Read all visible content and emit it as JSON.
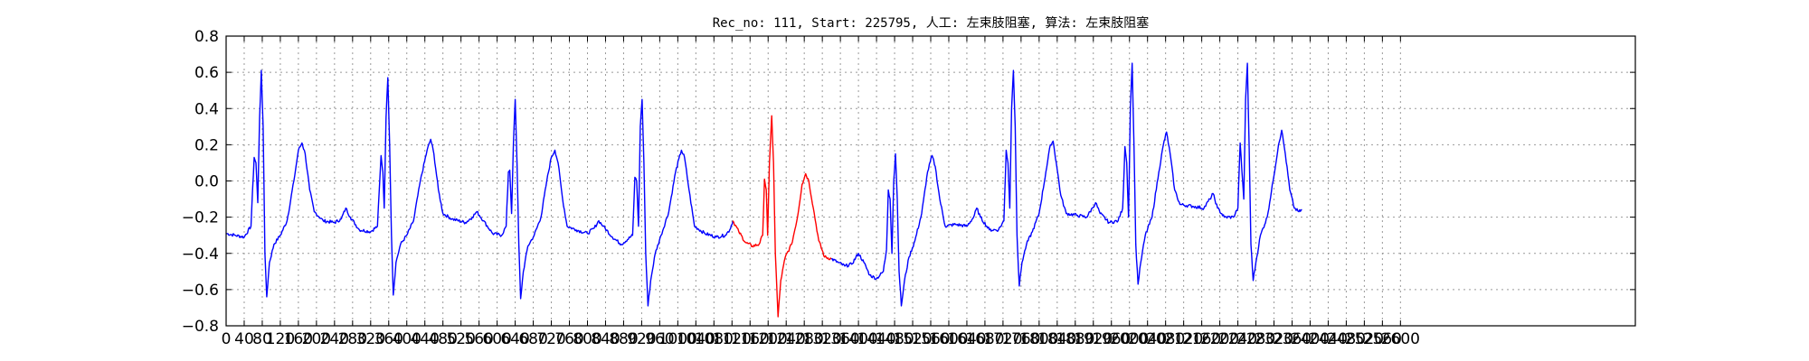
{
  "chart_data": {
    "type": "line",
    "title": "Rec_no: 111, Start: 225795, 人工: 左束肢阻塞, 算法: 左束肢阻塞",
    "xlabel": "",
    "ylabel": "",
    "xlim": [
      0,
      3120
    ],
    "ylim": [
      -0.8,
      0.8
    ],
    "grid": true,
    "x_ticks": [
      0,
      40,
      80,
      120,
      160,
      200,
      240,
      280,
      320,
      360,
      400,
      440,
      480,
      520,
      560,
      600,
      640,
      680,
      720,
      760,
      800,
      840,
      880,
      920,
      960,
      1000,
      1040,
      1080,
      1120,
      1160,
      1200,
      1240,
      1280,
      1320,
      1360,
      1400,
      1440,
      1480,
      1520,
      1560,
      1600,
      1640,
      1680,
      1720,
      1760,
      1800,
      1840,
      1880,
      1920,
      1960,
      2000,
      2040,
      2080,
      2120,
      2160,
      2200,
      2240,
      2280,
      2320,
      2360,
      2400,
      2440,
      2480,
      2520,
      2560,
      2600
    ],
    "x_tick_labels": [
      "0",
      "40",
      "80",
      "120",
      "160",
      "200",
      "240",
      "280",
      "320",
      "360",
      "400",
      "440",
      "480",
      "520",
      "560",
      "600",
      "640",
      "680",
      "720",
      "760",
      "800",
      "840",
      "880",
      "920",
      "960",
      "1000",
      "1040",
      "1080",
      "1120",
      "1160",
      "1200",
      "1240",
      "1280",
      "1320",
      "1360",
      "1400",
      "1440",
      "1480",
      "1520",
      "1560",
      "1600",
      "1640",
      "1680",
      "1720",
      "1760",
      "1800",
      "1840",
      "1880",
      "1920",
      "1960",
      "2000",
      "2040",
      "2080",
      "2120",
      "2160",
      "2200",
      "2240",
      "2280",
      "2320",
      "2360",
      "2400",
      "2440",
      "2480",
      "2520",
      "2560",
      "2600"
    ],
    "y_ticks": [
      -0.8,
      -0.6,
      -0.4,
      -0.2,
      0.0,
      0.2,
      0.4,
      0.6,
      0.8
    ],
    "y_tick_labels": [
      "−0.8",
      "−0.6",
      "−0.4",
      "−0.2",
      "0.0",
      "0.2",
      "0.4",
      "0.6",
      "0.8"
    ],
    "series": [
      {
        "color": "#0000ff",
        "points": [
          [
            0,
            -0.29
          ],
          [
            20,
            -0.3
          ],
          [
            40,
            -0.31
          ],
          [
            55,
            -0.25
          ],
          [
            62,
            0.13
          ],
          [
            66,
            0.1
          ],
          [
            70,
            -0.12
          ],
          [
            74,
            0.35
          ],
          [
            78,
            0.61
          ],
          [
            82,
            0.3
          ],
          [
            86,
            -0.4
          ],
          [
            90,
            -0.64
          ],
          [
            96,
            -0.45
          ],
          [
            106,
            -0.35
          ],
          [
            120,
            -0.3
          ],
          [
            135,
            -0.22
          ],
          [
            150,
            0.0
          ],
          [
            160,
            0.17
          ],
          [
            168,
            0.21
          ],
          [
            175,
            0.15
          ],
          [
            185,
            -0.05
          ],
          [
            195,
            -0.17
          ],
          [
            215,
            -0.22
          ],
          [
            240,
            -0.23
          ],
          [
            255,
            -0.21
          ],
          [
            265,
            -0.15
          ],
          [
            275,
            -0.2
          ],
          [
            295,
            -0.27
          ],
          [
            320,
            -0.28
          ],
          [
            335,
            -0.25
          ],
          [
            343,
            0.14
          ],
          [
            347,
            0.05
          ],
          [
            350,
            -0.15
          ],
          [
            354,
            0.35
          ],
          [
            358,
            0.57
          ],
          [
            362,
            0.2
          ],
          [
            366,
            -0.3
          ],
          [
            370,
            -0.63
          ],
          [
            376,
            -0.45
          ],
          [
            386,
            -0.35
          ],
          [
            400,
            -0.3
          ],
          [
            415,
            -0.22
          ],
          [
            430,
            0.0
          ],
          [
            445,
            0.17
          ],
          [
            453,
            0.23
          ],
          [
            460,
            0.15
          ],
          [
            470,
            -0.05
          ],
          [
            480,
            -0.18
          ],
          [
            500,
            -0.21
          ],
          [
            530,
            -0.23
          ],
          [
            545,
            -0.2
          ],
          [
            555,
            -0.17
          ],
          [
            570,
            -0.22
          ],
          [
            590,
            -0.29
          ],
          [
            610,
            -0.3
          ],
          [
            620,
            -0.25
          ],
          [
            625,
            0.05
          ],
          [
            628,
            0.06
          ],
          [
            632,
            -0.18
          ],
          [
            636,
            0.2
          ],
          [
            640,
            0.45
          ],
          [
            644,
            0.1
          ],
          [
            648,
            -0.35
          ],
          [
            652,
            -0.65
          ],
          [
            658,
            -0.5
          ],
          [
            668,
            -0.36
          ],
          [
            682,
            -0.3
          ],
          [
            697,
            -0.2
          ],
          [
            710,
            0.0
          ],
          [
            720,
            0.13
          ],
          [
            728,
            0.17
          ],
          [
            735,
            0.1
          ],
          [
            745,
            -0.1
          ],
          [
            755,
            -0.25
          ],
          [
            775,
            -0.27
          ],
          [
            800,
            -0.29
          ],
          [
            815,
            -0.26
          ],
          [
            825,
            -0.22
          ],
          [
            835,
            -0.25
          ],
          [
            855,
            -0.31
          ],
          [
            875,
            -0.35
          ],
          [
            900,
            -0.3
          ],
          [
            905,
            0.02
          ],
          [
            909,
            0.0
          ],
          [
            913,
            -0.25
          ],
          [
            917,
            0.3
          ],
          [
            921,
            0.45
          ],
          [
            925,
            0.1
          ],
          [
            929,
            -0.4
          ],
          [
            934,
            -0.69
          ],
          [
            940,
            -0.55
          ],
          [
            950,
            -0.4
          ],
          [
            963,
            -0.3
          ],
          [
            980,
            -0.17
          ],
          [
            995,
            0.05
          ],
          [
            1008,
            0.17
          ],
          [
            1015,
            0.13
          ],
          [
            1025,
            -0.05
          ],
          [
            1037,
            -0.25
          ],
          [
            1060,
            -0.29
          ],
          [
            1085,
            -0.31
          ],
          [
            1105,
            -0.3
          ],
          [
            1115,
            -0.27
          ],
          [
            1122,
            -0.22
          ]
        ]
      },
      {
        "color": "#ff0000",
        "points": [
          [
            1122,
            -0.22
          ],
          [
            1135,
            -0.28
          ],
          [
            1150,
            -0.34
          ],
          [
            1165,
            -0.36
          ],
          [
            1180,
            -0.35
          ],
          [
            1188,
            -0.3
          ],
          [
            1192,
            0.01
          ],
          [
            1196,
            -0.05
          ],
          [
            1199,
            -0.3
          ],
          [
            1203,
            0.1
          ],
          [
            1208,
            0.36
          ],
          [
            1212,
            0.1
          ],
          [
            1216,
            -0.4
          ],
          [
            1222,
            -0.75
          ],
          [
            1228,
            -0.55
          ],
          [
            1238,
            -0.42
          ],
          [
            1252,
            -0.35
          ],
          [
            1265,
            -0.2
          ],
          [
            1275,
            -0.02
          ],
          [
            1283,
            0.04
          ],
          [
            1290,
            0.0
          ],
          [
            1300,
            -0.15
          ],
          [
            1312,
            -0.33
          ],
          [
            1325,
            -0.42
          ],
          [
            1340,
            -0.43
          ]
        ]
      },
      {
        "color": "#0000ff",
        "points": [
          [
            1340,
            -0.43
          ],
          [
            1355,
            -0.45
          ],
          [
            1370,
            -0.47
          ],
          [
            1385,
            -0.46
          ],
          [
            1400,
            -0.4
          ],
          [
            1412,
            -0.45
          ],
          [
            1425,
            -0.52
          ],
          [
            1440,
            -0.54
          ],
          [
            1455,
            -0.5
          ],
          [
            1462,
            -0.38
          ],
          [
            1466,
            -0.05
          ],
          [
            1470,
            -0.1
          ],
          [
            1474,
            -0.4
          ],
          [
            1478,
            0.0
          ],
          [
            1482,
            0.15
          ],
          [
            1486,
            -0.1
          ],
          [
            1490,
            -0.5
          ],
          [
            1495,
            -0.69
          ],
          [
            1502,
            -0.55
          ],
          [
            1512,
            -0.42
          ],
          [
            1525,
            -0.33
          ],
          [
            1540,
            -0.18
          ],
          [
            1553,
            0.05
          ],
          [
            1563,
            0.14
          ],
          [
            1570,
            0.08
          ],
          [
            1580,
            -0.1
          ],
          [
            1592,
            -0.25
          ],
          [
            1615,
            -0.24
          ],
          [
            1640,
            -0.25
          ],
          [
            1655,
            -0.2
          ],
          [
            1662,
            -0.15
          ],
          [
            1670,
            -0.2
          ],
          [
            1690,
            -0.27
          ],
          [
            1710,
            -0.27
          ],
          [
            1722,
            -0.22
          ],
          [
            1727,
            0.17
          ],
          [
            1731,
            0.1
          ],
          [
            1735,
            -0.15
          ],
          [
            1739,
            0.4
          ],
          [
            1743,
            0.61
          ],
          [
            1747,
            0.3
          ],
          [
            1751,
            -0.3
          ],
          [
            1756,
            -0.58
          ],
          [
            1762,
            -0.45
          ],
          [
            1772,
            -0.35
          ],
          [
            1785,
            -0.28
          ],
          [
            1800,
            -0.18
          ],
          [
            1815,
            0.05
          ],
          [
            1825,
            0.2
          ],
          [
            1831,
            0.22
          ],
          [
            1838,
            0.1
          ],
          [
            1848,
            -0.08
          ],
          [
            1860,
            -0.18
          ],
          [
            1885,
            -0.19
          ],
          [
            1905,
            -0.2
          ],
          [
            1918,
            -0.15
          ],
          [
            1925,
            -0.12
          ],
          [
            1935,
            -0.18
          ],
          [
            1955,
            -0.23
          ],
          [
            1975,
            -0.22
          ],
          [
            1985,
            -0.15
          ],
          [
            1990,
            0.19
          ],
          [
            1994,
            0.1
          ],
          [
            1998,
            -0.2
          ],
          [
            2002,
            0.4
          ],
          [
            2006,
            0.65
          ],
          [
            2010,
            0.2
          ],
          [
            2014,
            -0.35
          ],
          [
            2019,
            -0.57
          ],
          [
            2025,
            -0.45
          ],
          [
            2035,
            -0.3
          ],
          [
            2050,
            -0.2
          ],
          [
            2065,
            0.05
          ],
          [
            2075,
            0.2
          ],
          [
            2082,
            0.27
          ],
          [
            2090,
            0.15
          ],
          [
            2100,
            -0.05
          ],
          [
            2112,
            -0.13
          ],
          [
            2140,
            -0.14
          ],
          [
            2165,
            -0.15
          ],
          [
            2178,
            -0.1
          ],
          [
            2185,
            -0.07
          ],
          [
            2195,
            -0.15
          ],
          [
            2210,
            -0.2
          ],
          [
            2230,
            -0.2
          ],
          [
            2240,
            -0.15
          ],
          [
            2245,
            0.21
          ],
          [
            2249,
            0.05
          ],
          [
            2253,
            -0.1
          ],
          [
            2257,
            0.45
          ],
          [
            2261,
            0.65
          ],
          [
            2265,
            0.2
          ],
          [
            2269,
            -0.35
          ],
          [
            2274,
            -0.55
          ],
          [
            2280,
            -0.45
          ],
          [
            2290,
            -0.3
          ],
          [
            2305,
            -0.2
          ],
          [
            2318,
            0.0
          ],
          [
            2330,
            0.2
          ],
          [
            2337,
            0.28
          ],
          [
            2345,
            0.15
          ],
          [
            2355,
            -0.05
          ],
          [
            2365,
            -0.15
          ],
          [
            2375,
            -0.17
          ],
          [
            2382,
            -0.16
          ]
        ]
      }
    ]
  }
}
